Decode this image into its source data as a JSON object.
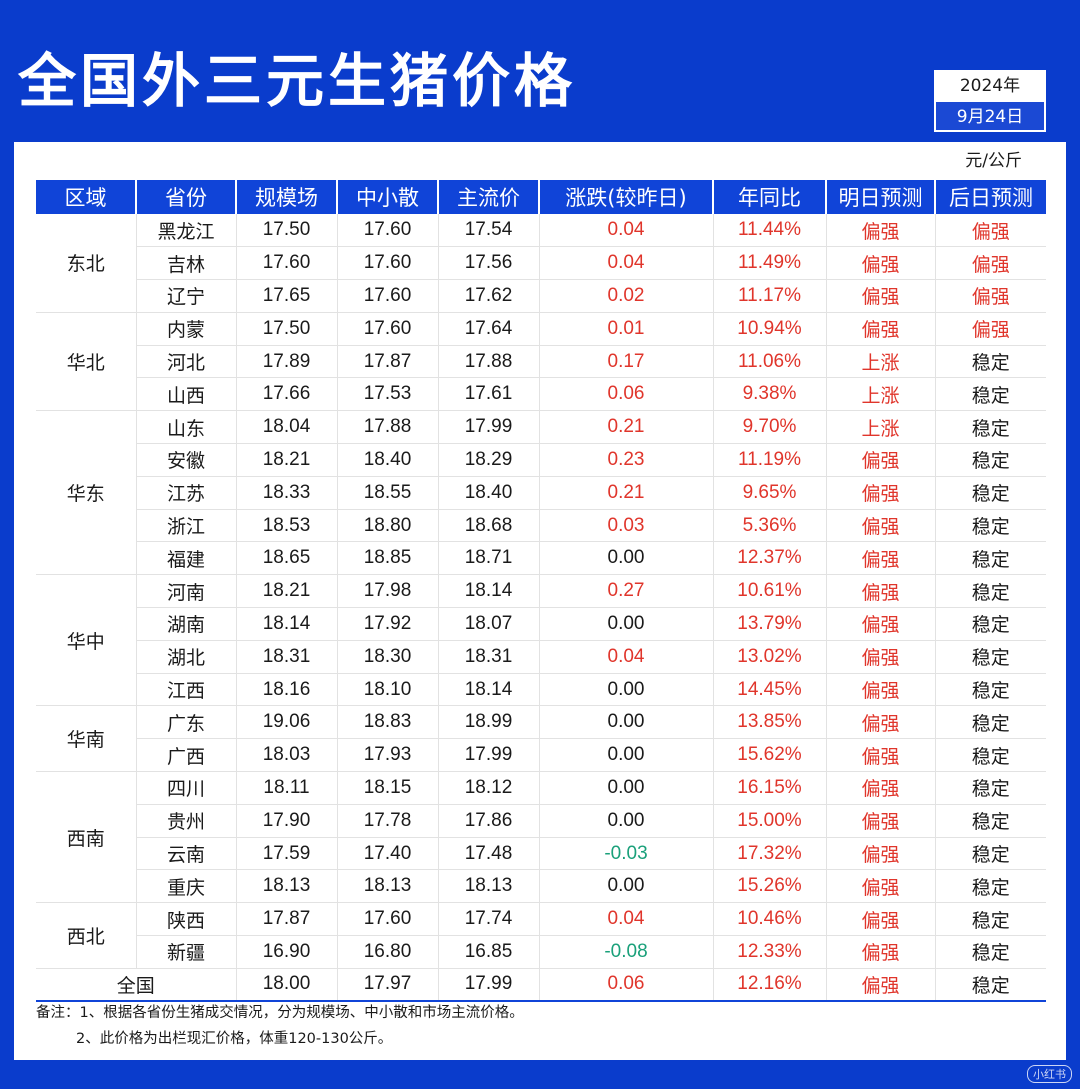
{
  "title": "全国外三元生猪价格",
  "date": {
    "year": "2024年",
    "day": "9月24日"
  },
  "unit": "元/公斤",
  "headers": [
    "区域",
    "省份",
    "规模场",
    "中小散",
    "主流价",
    "涨跌(较昨日)",
    "年同比",
    "明日预测",
    "后日预测"
  ],
  "regions": [
    {
      "name": "东北",
      "rows": 3
    },
    {
      "name": "华北",
      "rows": 3
    },
    {
      "name": "华东",
      "rows": 5
    },
    {
      "name": "华中",
      "rows": 4
    },
    {
      "name": "华南",
      "rows": 2
    },
    {
      "name": "西南",
      "rows": 4
    },
    {
      "name": "西北",
      "rows": 2
    }
  ],
  "rows": [
    {
      "province": "黑龙江",
      "large": "17.50",
      "small": "17.60",
      "main": "17.54",
      "change": "0.04",
      "dir": "up",
      "yoy": "11.44%",
      "tomorrow": "偏强",
      "after": "偏强"
    },
    {
      "province": "吉林",
      "large": "17.60",
      "small": "17.60",
      "main": "17.56",
      "change": "0.04",
      "dir": "up",
      "yoy": "11.49%",
      "tomorrow": "偏强",
      "after": "偏强"
    },
    {
      "province": "辽宁",
      "large": "17.65",
      "small": "17.60",
      "main": "17.62",
      "change": "0.02",
      "dir": "up",
      "yoy": "11.17%",
      "tomorrow": "偏强",
      "after": "偏强"
    },
    {
      "province": "内蒙",
      "large": "17.50",
      "small": "17.60",
      "main": "17.64",
      "change": "0.01",
      "dir": "up",
      "yoy": "10.94%",
      "tomorrow": "偏强",
      "after": "偏强"
    },
    {
      "province": "河北",
      "large": "17.89",
      "small": "17.87",
      "main": "17.88",
      "change": "0.17",
      "dir": "up",
      "yoy": "11.06%",
      "tomorrow": "上涨",
      "after": "稳定"
    },
    {
      "province": "山西",
      "large": "17.66",
      "small": "17.53",
      "main": "17.61",
      "change": "0.06",
      "dir": "up",
      "yoy": "9.38%",
      "tomorrow": "上涨",
      "after": "稳定"
    },
    {
      "province": "山东",
      "large": "18.04",
      "small": "17.88",
      "main": "17.99",
      "change": "0.21",
      "dir": "up",
      "yoy": "9.70%",
      "tomorrow": "上涨",
      "after": "稳定"
    },
    {
      "province": "安徽",
      "large": "18.21",
      "small": "18.40",
      "main": "18.29",
      "change": "0.23",
      "dir": "up",
      "yoy": "11.19%",
      "tomorrow": "偏强",
      "after": "稳定"
    },
    {
      "province": "江苏",
      "large": "18.33",
      "small": "18.55",
      "main": "18.40",
      "change": "0.21",
      "dir": "up",
      "yoy": "9.65%",
      "tomorrow": "偏强",
      "after": "稳定"
    },
    {
      "province": "浙江",
      "large": "18.53",
      "small": "18.80",
      "main": "18.68",
      "change": "0.03",
      "dir": "up",
      "yoy": "5.36%",
      "tomorrow": "偏强",
      "after": "稳定"
    },
    {
      "province": "福建",
      "large": "18.65",
      "small": "18.85",
      "main": "18.71",
      "change": "0.00",
      "dir": "flat",
      "yoy": "12.37%",
      "tomorrow": "偏强",
      "after": "稳定"
    },
    {
      "province": "河南",
      "large": "18.21",
      "small": "17.98",
      "main": "18.14",
      "change": "0.27",
      "dir": "up",
      "yoy": "10.61%",
      "tomorrow": "偏强",
      "after": "稳定"
    },
    {
      "province": "湖南",
      "large": "18.14",
      "small": "17.92",
      "main": "18.07",
      "change": "0.00",
      "dir": "flat",
      "yoy": "13.79%",
      "tomorrow": "偏强",
      "after": "稳定"
    },
    {
      "province": "湖北",
      "large": "18.31",
      "small": "18.30",
      "main": "18.31",
      "change": "0.04",
      "dir": "up",
      "yoy": "13.02%",
      "tomorrow": "偏强",
      "after": "稳定"
    },
    {
      "province": "江西",
      "large": "18.16",
      "small": "18.10",
      "main": "18.14",
      "change": "0.00",
      "dir": "flat",
      "yoy": "14.45%",
      "tomorrow": "偏强",
      "after": "稳定"
    },
    {
      "province": "广东",
      "large": "19.06",
      "small": "18.83",
      "main": "18.99",
      "change": "0.00",
      "dir": "flat",
      "yoy": "13.85%",
      "tomorrow": "偏强",
      "after": "稳定"
    },
    {
      "province": "广西",
      "large": "18.03",
      "small": "17.93",
      "main": "17.99",
      "change": "0.00",
      "dir": "flat",
      "yoy": "15.62%",
      "tomorrow": "偏强",
      "after": "稳定"
    },
    {
      "province": "四川",
      "large": "18.11",
      "small": "18.15",
      "main": "18.12",
      "change": "0.00",
      "dir": "flat",
      "yoy": "16.15%",
      "tomorrow": "偏强",
      "after": "稳定"
    },
    {
      "province": "贵州",
      "large": "17.90",
      "small": "17.78",
      "main": "17.86",
      "change": "0.00",
      "dir": "flat",
      "yoy": "15.00%",
      "tomorrow": "偏强",
      "after": "稳定"
    },
    {
      "province": "云南",
      "large": "17.59",
      "small": "17.40",
      "main": "17.48",
      "change": "-0.03",
      "dir": "down",
      "yoy": "17.32%",
      "tomorrow": "偏强",
      "after": "稳定"
    },
    {
      "province": "重庆",
      "large": "18.13",
      "small": "18.13",
      "main": "18.13",
      "change": "0.00",
      "dir": "flat",
      "yoy": "15.26%",
      "tomorrow": "偏强",
      "after": "稳定"
    },
    {
      "province": "陕西",
      "large": "17.87",
      "small": "17.60",
      "main": "17.74",
      "change": "0.04",
      "dir": "up",
      "yoy": "10.46%",
      "tomorrow": "偏强",
      "after": "稳定"
    },
    {
      "province": "新疆",
      "large": "16.90",
      "small": "16.80",
      "main": "16.85",
      "change": "-0.08",
      "dir": "down",
      "yoy": "12.33%",
      "tomorrow": "偏强",
      "after": "稳定"
    }
  ],
  "total": {
    "label": "全国",
    "large": "18.00",
    "small": "17.97",
    "main": "17.99",
    "change": "0.06",
    "dir": "up",
    "yoy": "12.16%",
    "tomorrow": "偏强",
    "after": "稳定"
  },
  "footnotes": [
    "备注：1、根据各省份生猪成交情况，分为规模场、中小散和市场主流价格。",
    "2、此价格为出栏现汇价格，体重120-130公斤。"
  ],
  "watermark": "小红书",
  "colors": {
    "background": "#0a3ccc",
    "header": "#1044d8",
    "up": "#e0352b",
    "down": "#1aa07a"
  }
}
